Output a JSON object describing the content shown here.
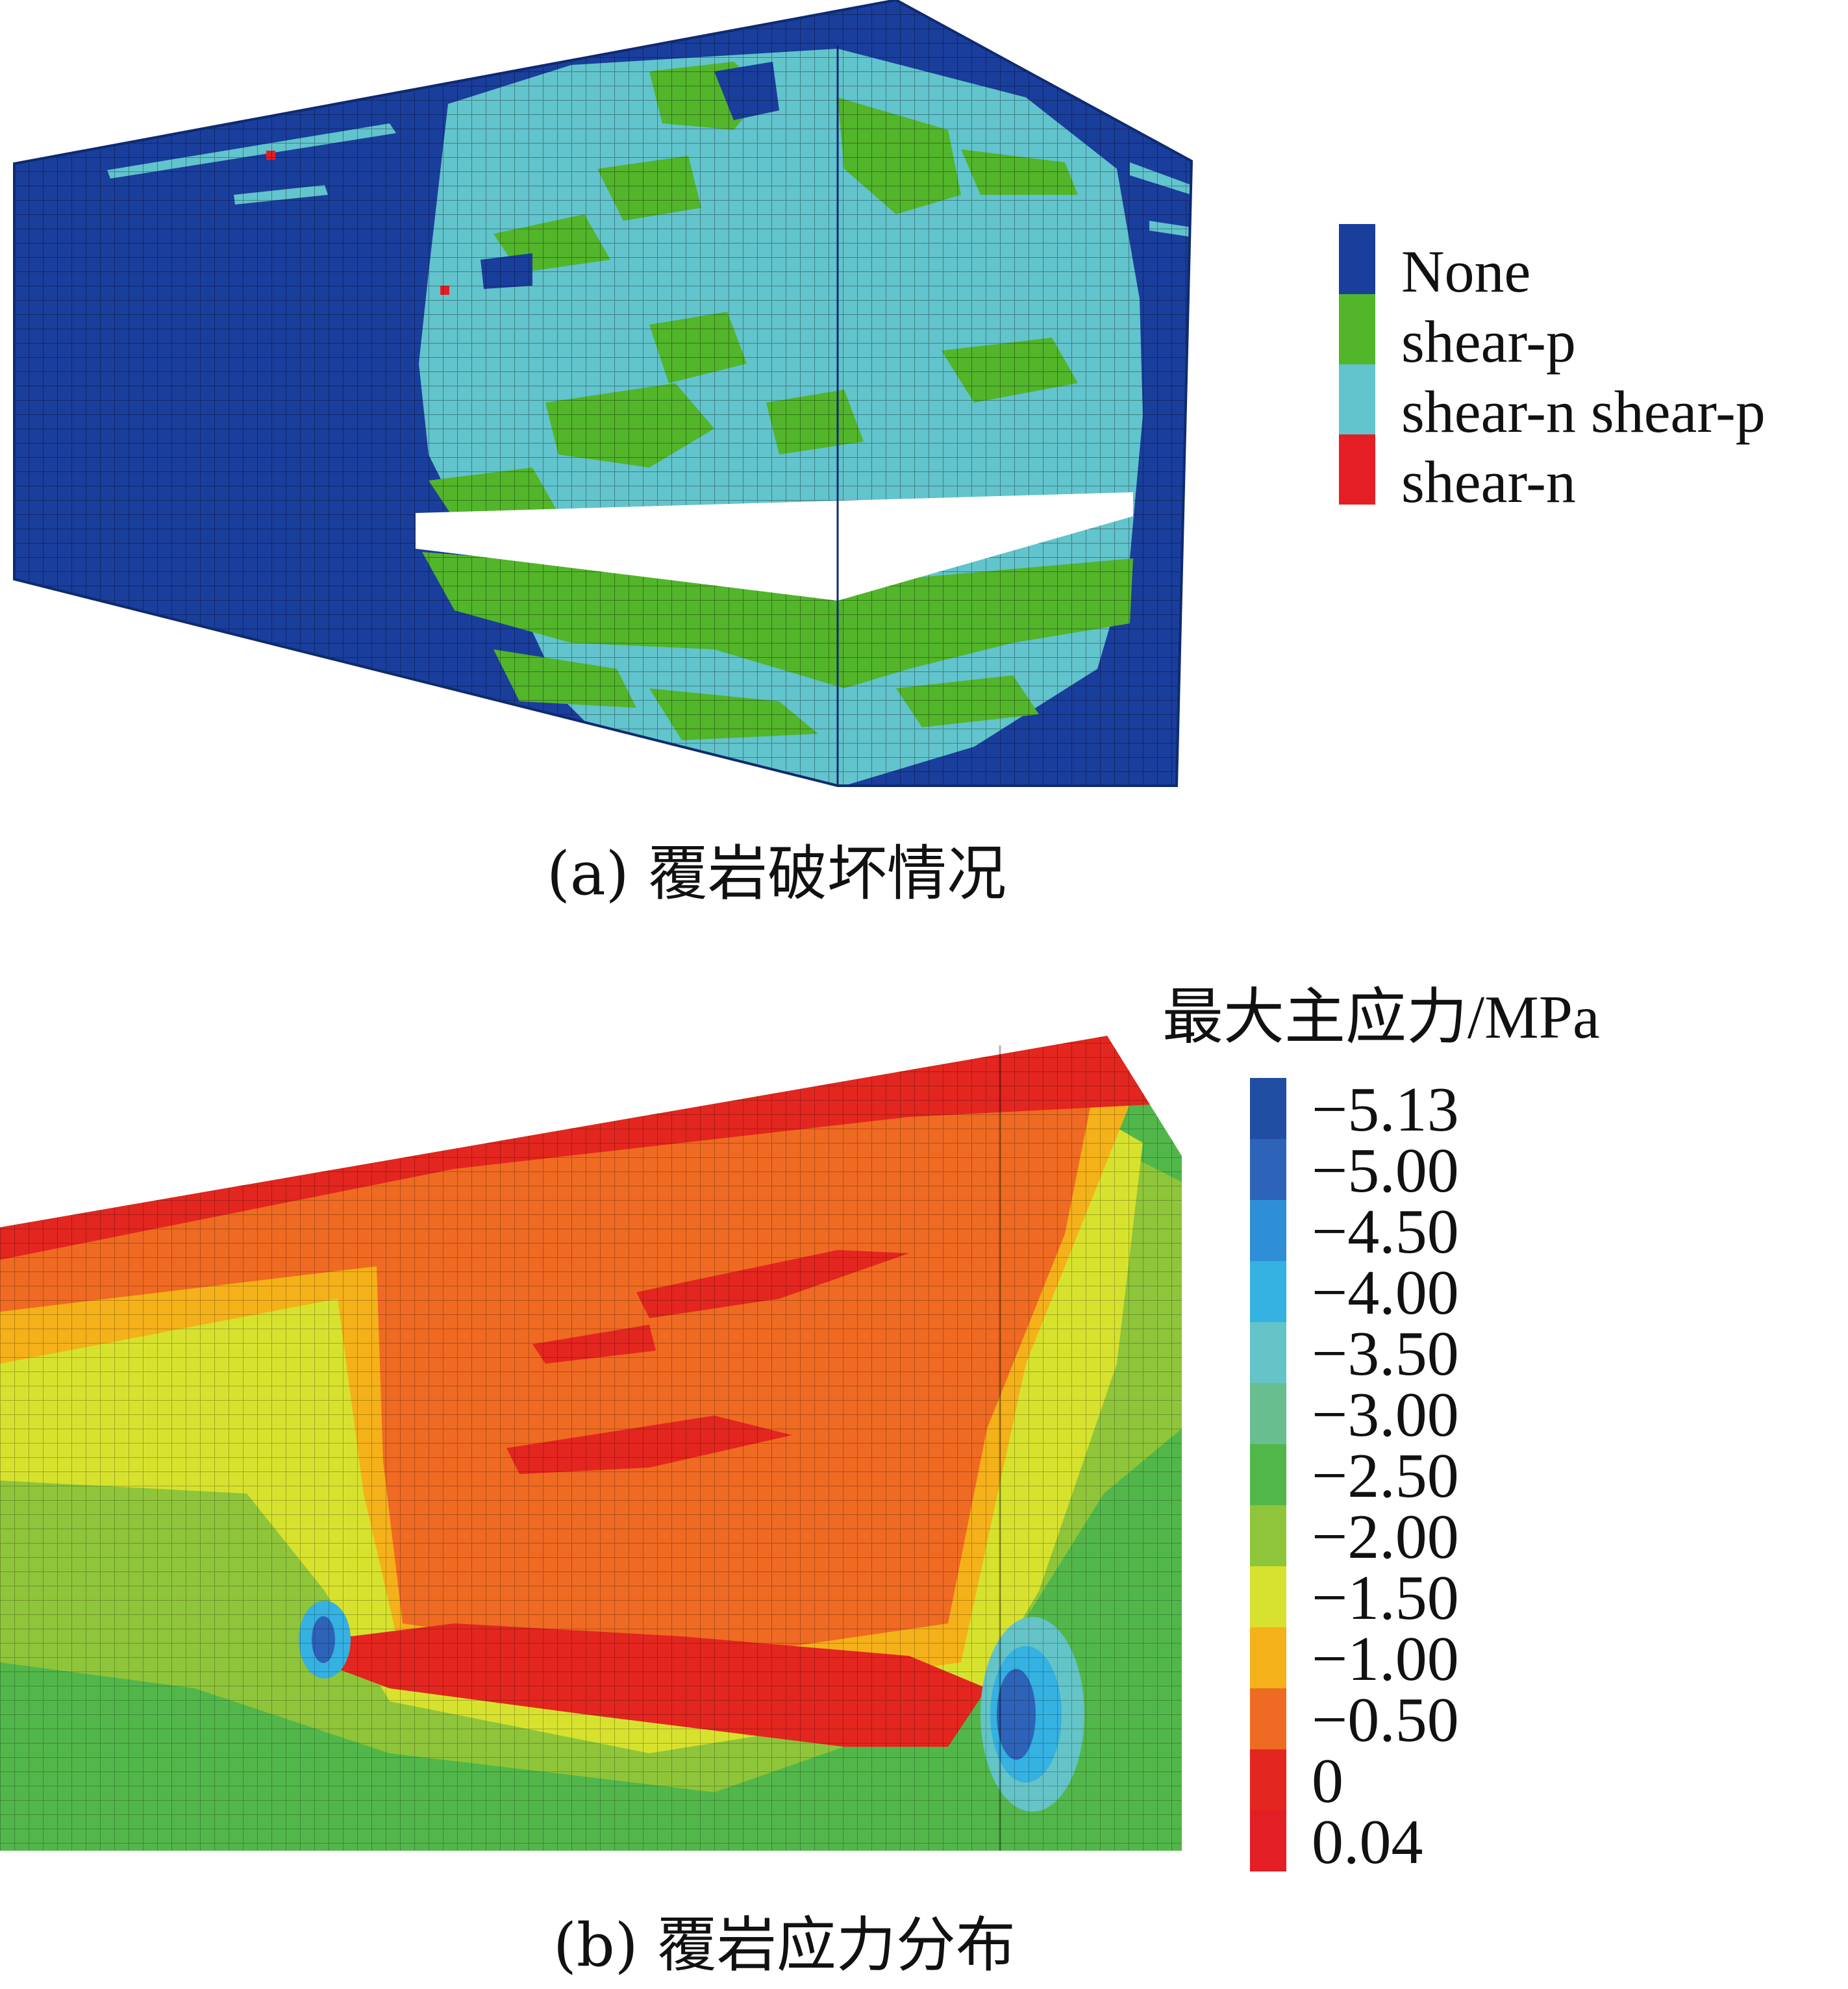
{
  "panel_a": {
    "caption": "(a)  覆岩破坏情况",
    "legend": [
      {
        "label": "None",
        "color": "#1a3e9c"
      },
      {
        "label": "shear-p",
        "color": "#52b52a"
      },
      {
        "label": "shear-n shear-p",
        "color": "#62c4cc"
      },
      {
        "label": "shear-n",
        "color": "#e51e25"
      }
    ]
  },
  "panel_b": {
    "caption": "(b)  覆岩应力分布",
    "scale_title": "最大主应力/MPa",
    "scale": [
      {
        "label": "−5.13",
        "color": "#1f4ea3"
      },
      {
        "label": "−5.00",
        "color": "#2d63b8"
      },
      {
        "label": "−4.50",
        "color": "#2e8fd6"
      },
      {
        "label": "−4.00",
        "color": "#35b1e2"
      },
      {
        "label": "−3.50",
        "color": "#64c4c8"
      },
      {
        "label": "−3.00",
        "color": "#68be8e"
      },
      {
        "label": "−2.50",
        "color": "#52b74a"
      },
      {
        "label": "−2.00",
        "color": "#8fc53a"
      },
      {
        "label": "−1.50",
        "color": "#d7e22e"
      },
      {
        "label": "−1.00",
        "color": "#f5b119"
      },
      {
        "label": "−0.50",
        "color": "#ef6a22"
      },
      {
        "label": "0",
        "color": "#e3261f"
      },
      {
        "label": "0.04",
        "color": "#e41e25"
      }
    ]
  }
}
